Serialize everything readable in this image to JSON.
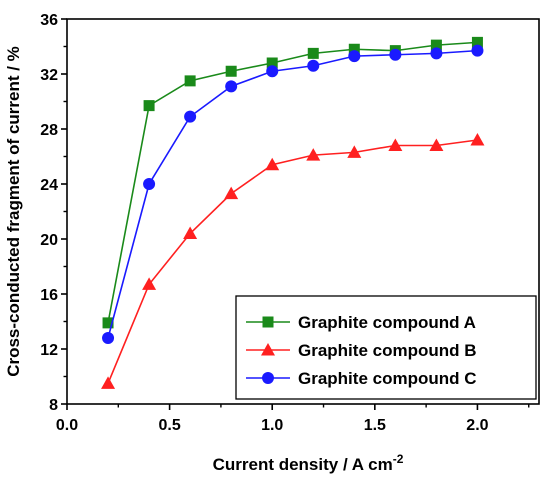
{
  "chart_data": {
    "type": "line",
    "xlabel": "Current density / A cm",
    "xlabel_sup": "-2",
    "ylabel": "Cross-conducted fragment of current / %",
    "xlim": [
      0.0,
      2.3
    ],
    "ylim": [
      8,
      36
    ],
    "x_ticks": [
      0.0,
      0.5,
      1.0,
      1.5,
      2.0
    ],
    "x_tick_labels": [
      "0.0",
      "0.5",
      "1.0",
      "1.5",
      "2.0"
    ],
    "y_ticks": [
      8,
      12,
      16,
      20,
      24,
      28,
      32,
      36
    ],
    "y_tick_labels": [
      "8",
      "12",
      "16",
      "20",
      "24",
      "28",
      "32",
      "36"
    ],
    "grid": false,
    "legend_position": "bottom-right",
    "x": [
      0.2,
      0.4,
      0.6,
      0.8,
      1.0,
      1.2,
      1.4,
      1.6,
      1.8,
      2.0
    ],
    "series": [
      {
        "name": "Graphite compound A",
        "color": "#1a8a1a",
        "marker": "square",
        "values": [
          13.9,
          29.7,
          31.5,
          32.2,
          32.8,
          33.5,
          33.8,
          33.7,
          34.1,
          34.3
        ]
      },
      {
        "name": "Graphite compound B",
        "color": "#ff2020",
        "marker": "triangle",
        "values": [
          9.5,
          16.7,
          20.4,
          23.3,
          25.4,
          26.1,
          26.3,
          26.8,
          26.8,
          27.2
        ]
      },
      {
        "name": "Graphite compound C",
        "color": "#1a1aff",
        "marker": "circle",
        "values": [
          12.8,
          24.0,
          28.9,
          31.1,
          32.2,
          32.6,
          33.3,
          33.4,
          33.5,
          33.7
        ]
      }
    ]
  }
}
